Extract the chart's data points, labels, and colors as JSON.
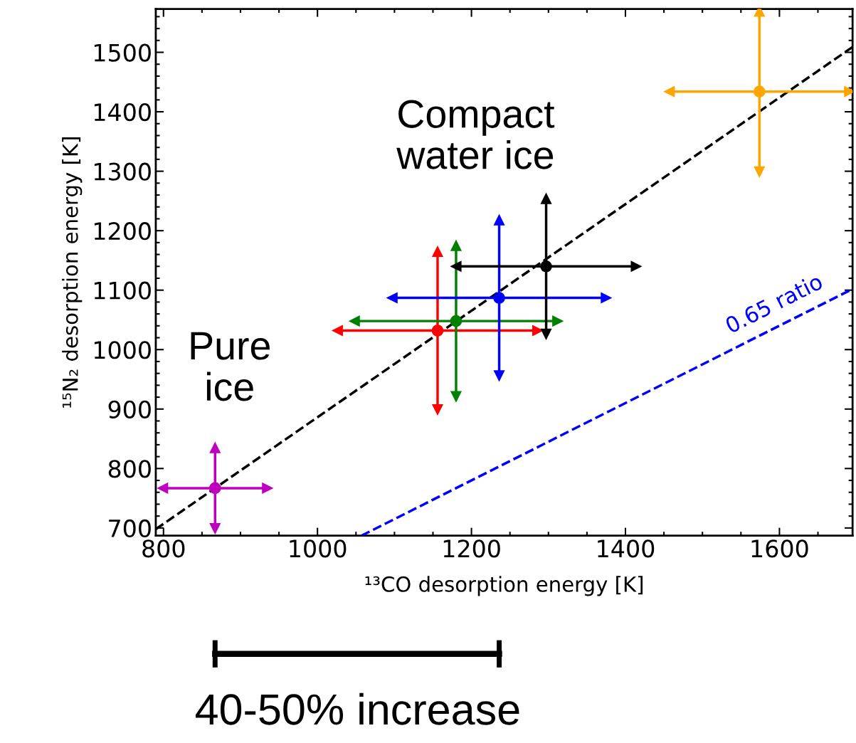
{
  "chart_data": {
    "type": "scatter",
    "xlabel": "¹³CO desorption energy [K]",
    "ylabel": "¹⁵N₂ desorption energy [K]",
    "xlim": [
      790,
      1695
    ],
    "ylim": [
      687,
      1573
    ],
    "xticks": [
      800,
      1000,
      1200,
      1400,
      1600
    ],
    "yticks": [
      700,
      800,
      900,
      1000,
      1100,
      1200,
      1300,
      1400,
      1500
    ],
    "grid": false,
    "marker": "circle",
    "series": [
      {
        "color": "#bf00bf",
        "x": [
          867
        ],
        "values": [
          767
        ],
        "xerrors": [
          68
        ],
        "errors": [
          68
        ]
      },
      {
        "color": "#ff0000",
        "x": [
          1156
        ],
        "values": [
          1032
        ],
        "xerrors": [
          130
        ],
        "errors": [
          133
        ]
      },
      {
        "color": "#008000",
        "x": [
          1180
        ],
        "values": [
          1048
        ],
        "xerrors": [
          132
        ],
        "errors": [
          127
        ]
      },
      {
        "color": "#0000ff",
        "x": [
          1236
        ],
        "values": [
          1087
        ],
        "xerrors": [
          139
        ],
        "errors": [
          131
        ]
      },
      {
        "color": "#000000",
        "x": [
          1297
        ],
        "values": [
          1140
        ],
        "xerrors": [
          117
        ],
        "errors": [
          114
        ]
      },
      {
        "color": "#ffa500",
        "x": [
          1574
        ],
        "values": [
          1434
        ],
        "xerrors": [
          117
        ],
        "errors": [
          135
        ]
      },
      {
        "type": "line",
        "color": "#000000",
        "line_style": "dashed",
        "marker": "none",
        "x": [
          790,
          1695
        ],
        "values": [
          698,
          1509
        ]
      },
      {
        "type": "line",
        "color": "#0000ff",
        "line_style": "dashed",
        "marker": "none",
        "x": [
          1057,
          1695
        ],
        "values": [
          687,
          1102
        ]
      }
    ],
    "annotations": [
      "0.65 ratio",
      "Compact\nwater ice",
      "Pure\nice",
      "40-50% increase"
    ]
  }
}
